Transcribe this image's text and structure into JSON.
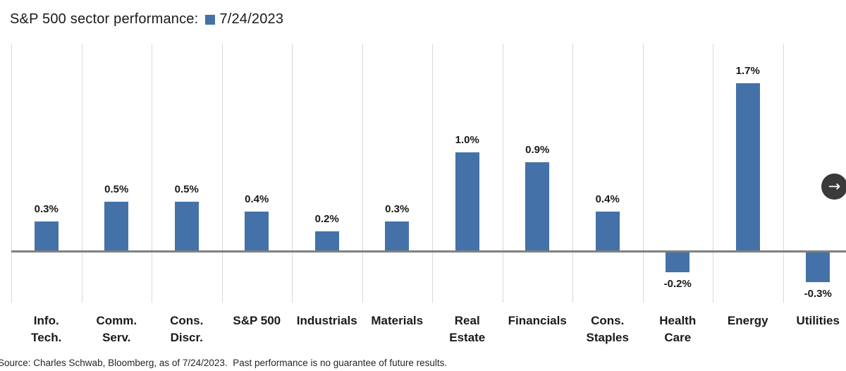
{
  "header": {
    "title": "S&P 500 sector performance:",
    "legend_label": "7/24/2023",
    "legend_color": "#4472a8"
  },
  "chart_data": {
    "type": "bar",
    "title": "S&P 500 sector performance:",
    "series_name": "7/24/2023",
    "unit": "%",
    "categories": [
      "Info. Tech.",
      "Comm. Serv.",
      "Cons. Discr.",
      "S&P 500",
      "Industrials",
      "Materials",
      "Real Estate",
      "Financials",
      "Cons. Staples",
      "Health Care",
      "Energy",
      "Utilities"
    ],
    "category_lines": [
      [
        "Info.",
        "Tech."
      ],
      [
        "Comm.",
        "Serv."
      ],
      [
        "Cons.",
        "Discr."
      ],
      [
        "S&P 500"
      ],
      [
        "Industrials"
      ],
      [
        "Materials"
      ],
      [
        "Real",
        "Estate"
      ],
      [
        "Financials"
      ],
      [
        "Cons.",
        "Staples"
      ],
      [
        "Health",
        "Care"
      ],
      [
        "Energy"
      ],
      [
        "Utilities"
      ]
    ],
    "values": [
      0.3,
      0.5,
      0.5,
      0.4,
      0.2,
      0.3,
      1.0,
      0.9,
      0.4,
      -0.2,
      1.7,
      -0.3
    ],
    "value_labels": [
      "0.3%",
      "0.5%",
      "0.5%",
      "0.4%",
      "0.2%",
      "0.3%",
      "1.0%",
      "0.9%",
      "0.4%",
      "-0.2%",
      "1.7%",
      "-0.3%"
    ],
    "bar_color": "#4472a8",
    "zero_line_color": "#808080",
    "gridline_color": "#d9d9d9",
    "ylim": [
      -0.55,
      2.1
    ],
    "grid": "vertical-category-separators-only",
    "legend_position": "top-inline-with-title"
  },
  "footer": {
    "source_note": "Source: Charles Schwab, Bloomberg, as of 7/24/2023.  Past performance is no guarantee of future results."
  },
  "controls": {
    "next_arrow": "→"
  }
}
